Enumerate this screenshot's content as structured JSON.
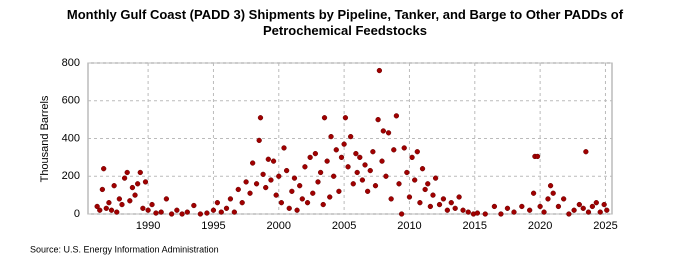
{
  "chart_data": {
    "type": "scatter",
    "title": "Monthly Gulf Coast (PADD 3) Shipments by Pipeline, Tanker, and Barge to Other PADDs of Petrochemical Feedstocks",
    "ylabel": "Thousand Barrels",
    "source": "Source: U.S. Energy Information Administration",
    "color": "#a00000",
    "grid": true,
    "xlim": [
      1985.4,
      2025.5
    ],
    "ylim": [
      0,
      800
    ],
    "xticks": [
      1990,
      1995,
      2000,
      2005,
      2010,
      2015,
      2020,
      2025
    ],
    "yticks": [
      0,
      200,
      400,
      600,
      800
    ],
    "x": [
      1986.1,
      1986.3,
      1986.5,
      1986.6,
      1986.8,
      1987.0,
      1987.2,
      1987.4,
      1987.6,
      1987.8,
      1988.0,
      1988.2,
      1988.4,
      1988.6,
      1988.8,
      1989.0,
      1989.2,
      1989.4,
      1989.6,
      1989.8,
      1990.0,
      1990.3,
      1990.6,
      1991.0,
      1991.4,
      1991.8,
      1992.2,
      1992.6,
      1993.0,
      1993.5,
      1994.0,
      1994.5,
      1995.0,
      1995.3,
      1995.6,
      1996.0,
      1996.3,
      1996.6,
      1996.9,
      1997.2,
      1997.5,
      1997.8,
      1998.0,
      1998.3,
      1998.5,
      1998.6,
      1998.8,
      1999.0,
      1999.2,
      1999.4,
      1999.6,
      1999.8,
      2000.0,
      2000.2,
      2000.4,
      2000.6,
      2000.8,
      2001.0,
      2001.2,
      2001.4,
      2001.6,
      2001.8,
      2002.0,
      2002.2,
      2002.4,
      2002.6,
      2002.8,
      2003.0,
      2003.2,
      2003.4,
      2003.5,
      2003.7,
      2003.9,
      2004.0,
      2004.2,
      2004.4,
      2004.6,
      2004.8,
      2005.0,
      2005.1,
      2005.3,
      2005.5,
      2005.7,
      2005.9,
      2006.0,
      2006.2,
      2006.4,
      2006.6,
      2006.8,
      2007.0,
      2007.2,
      2007.4,
      2007.6,
      2007.7,
      2007.9,
      2008.0,
      2008.2,
      2008.4,
      2008.6,
      2008.8,
      2009.0,
      2009.2,
      2009.4,
      2009.6,
      2009.8,
      2010.0,
      2010.2,
      2010.4,
      2010.6,
      2010.8,
      2011.0,
      2011.2,
      2011.4,
      2011.6,
      2011.8,
      2012.0,
      2012.3,
      2012.6,
      2012.9,
      2013.2,
      2013.5,
      2013.8,
      2014.1,
      2014.5,
      2014.9,
      2015.2,
      2015.8,
      2016.5,
      2017.0,
      2017.5,
      2018.0,
      2018.6,
      2019.2,
      2019.5,
      2019.6,
      2019.8,
      2020.0,
      2020.3,
      2020.6,
      2020.8,
      2021.0,
      2021.4,
      2021.8,
      2022.2,
      2022.6,
      2023.0,
      2023.3,
      2023.5,
      2023.7,
      2024.0,
      2024.3,
      2024.6,
      2024.9,
      2025.1
    ],
    "values": [
      40,
      20,
      130,
      240,
      30,
      60,
      20,
      150,
      10,
      80,
      50,
      190,
      220,
      70,
      140,
      100,
      160,
      220,
      30,
      170,
      20,
      50,
      5,
      10,
      80,
      0,
      20,
      0,
      10,
      45,
      0,
      5,
      20,
      60,
      10,
      30,
      80,
      10,
      130,
      60,
      170,
      110,
      270,
      160,
      390,
      510,
      210,
      140,
      290,
      180,
      280,
      100,
      200,
      60,
      350,
      230,
      30,
      120,
      190,
      20,
      150,
      80,
      250,
      60,
      300,
      110,
      320,
      170,
      220,
      50,
      510,
      280,
      90,
      410,
      200,
      340,
      120,
      300,
      370,
      510,
      250,
      410,
      160,
      320,
      220,
      300,
      180,
      260,
      120,
      230,
      330,
      150,
      500,
      760,
      280,
      440,
      200,
      430,
      80,
      340,
      520,
      160,
      0,
      350,
      220,
      90,
      300,
      180,
      330,
      60,
      240,
      130,
      160,
      40,
      100,
      190,
      50,
      80,
      20,
      60,
      30,
      90,
      20,
      10,
      0,
      5,
      0,
      40,
      0,
      30,
      10,
      40,
      20,
      110,
      305,
      305,
      40,
      10,
      80,
      150,
      110,
      40,
      80,
      0,
      20,
      50,
      30,
      330,
      10,
      40,
      60,
      10,
      50,
      20
    ]
  }
}
